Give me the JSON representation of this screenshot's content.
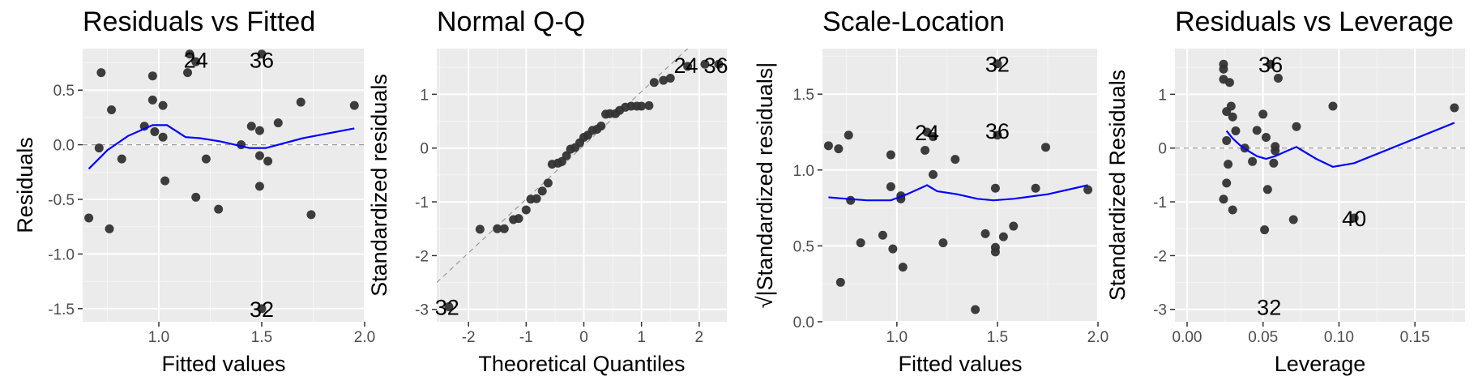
{
  "chart_data": [
    {
      "type": "scatter",
      "title": "Residuals vs Fitted",
      "xlabel": "Fitted values",
      "ylabel": "Residuals",
      "xlim": [
        0.63,
        2.0
      ],
      "ylim": [
        -1.62,
        0.88
      ],
      "x_ticks": [
        1.0,
        1.5,
        2.0
      ],
      "x_tick_labels": [
        "1.0",
        "1.5",
        "2.0"
      ],
      "y_ticks": [
        -1.5,
        -1.0,
        -0.5,
        0.0,
        0.5
      ],
      "y_tick_labels": [
        "-1.5",
        "-1.0",
        "-0.5",
        "0.0",
        "0.5"
      ],
      "grid": true,
      "reference_line": {
        "kind": "horizontal",
        "y": 0,
        "style": "dashed"
      },
      "points": [
        {
          "x": 0.66,
          "y": -0.67
        },
        {
          "x": 0.71,
          "y": -0.03
        },
        {
          "x": 0.72,
          "y": 0.66
        },
        {
          "x": 0.76,
          "y": -0.77
        },
        {
          "x": 0.77,
          "y": 0.32
        },
        {
          "x": 0.82,
          "y": -0.13
        },
        {
          "x": 0.93,
          "y": 0.17
        },
        {
          "x": 0.97,
          "y": 0.63
        },
        {
          "x": 0.97,
          "y": 0.41
        },
        {
          "x": 0.98,
          "y": 0.12
        },
        {
          "x": 1.02,
          "y": 0.07
        },
        {
          "x": 1.02,
          "y": 0.36
        },
        {
          "x": 1.03,
          "y": -0.33
        },
        {
          "x": 1.14,
          "y": 0.66
        },
        {
          "x": 1.15,
          "y": 0.83
        },
        {
          "x": 1.18,
          "y": 0.76
        },
        {
          "x": 1.18,
          "y": -0.48
        },
        {
          "x": 1.23,
          "y": -0.13
        },
        {
          "x": 1.29,
          "y": -0.59
        },
        {
          "x": 1.4,
          "y": 0.0
        },
        {
          "x": 1.45,
          "y": 0.17
        },
        {
          "x": 1.49,
          "y": 0.13
        },
        {
          "x": 1.49,
          "y": -0.1
        },
        {
          "x": 1.49,
          "y": -0.38
        },
        {
          "x": 1.5,
          "y": 0.83
        },
        {
          "x": 1.5,
          "y": -1.5
        },
        {
          "x": 1.53,
          "y": -0.15
        },
        {
          "x": 1.58,
          "y": 0.2
        },
        {
          "x": 1.69,
          "y": 0.39
        },
        {
          "x": 1.74,
          "y": -0.64
        },
        {
          "x": 1.95,
          "y": 0.36
        }
      ],
      "smooth_line": [
        {
          "x": 0.66,
          "y": -0.22
        },
        {
          "x": 0.75,
          "y": -0.05
        },
        {
          "x": 0.85,
          "y": 0.08
        },
        {
          "x": 0.97,
          "y": 0.18
        },
        {
          "x": 1.04,
          "y": 0.18
        },
        {
          "x": 1.13,
          "y": 0.07
        },
        {
          "x": 1.2,
          "y": 0.06
        },
        {
          "x": 1.3,
          "y": 0.03
        },
        {
          "x": 1.44,
          "y": -0.03
        },
        {
          "x": 1.52,
          "y": -0.03
        },
        {
          "x": 1.7,
          "y": 0.06
        },
        {
          "x": 1.95,
          "y": 0.15
        }
      ],
      "annotations": [
        {
          "text": "24",
          "x": 1.18,
          "y": 0.78
        },
        {
          "text": "36",
          "x": 1.5,
          "y": 0.78
        },
        {
          "text": "32",
          "x": 1.5,
          "y": -1.5
        }
      ]
    },
    {
      "type": "scatter",
      "title": "Normal Q-Q",
      "xlabel": "Theoretical Quantiles",
      "ylabel": "Standardized residuals",
      "xlim": [
        -2.55,
        2.48
      ],
      "ylim": [
        -3.23,
        1.85
      ],
      "x_ticks": [
        -2,
        -1,
        0,
        1,
        2
      ],
      "x_tick_labels": [
        "-2",
        "-1",
        "0",
        "1",
        "2"
      ],
      "y_ticks": [
        -3,
        -2,
        -1,
        0,
        1
      ],
      "y_tick_labels": [
        "-3",
        "-2",
        "-1",
        "0",
        "1"
      ],
      "grid": true,
      "reference_line": {
        "kind": "diagonal",
        "slope": 1.0,
        "intercept": 0.05,
        "style": "dashed"
      },
      "points": [
        {
          "x": -2.34,
          "y": -2.95
        },
        {
          "x": -1.8,
          "y": -1.51
        },
        {
          "x": -1.5,
          "y": -1.5
        },
        {
          "x": -1.38,
          "y": -1.5
        },
        {
          "x": -1.22,
          "y": -1.33
        },
        {
          "x": -1.13,
          "y": -1.31
        },
        {
          "x": -1.0,
          "y": -1.15
        },
        {
          "x": -0.92,
          "y": -0.95
        },
        {
          "x": -0.82,
          "y": -0.94
        },
        {
          "x": -0.72,
          "y": -0.8
        },
        {
          "x": -0.62,
          "y": -0.65
        },
        {
          "x": -0.55,
          "y": -0.3
        },
        {
          "x": -0.45,
          "y": -0.28
        },
        {
          "x": -0.38,
          "y": -0.25
        },
        {
          "x": -0.3,
          "y": -0.14
        },
        {
          "x": -0.23,
          "y": -0.02
        },
        {
          "x": -0.15,
          "y": 0.01
        },
        {
          "x": -0.07,
          "y": 0.1
        },
        {
          "x": 0.0,
          "y": 0.2
        },
        {
          "x": 0.07,
          "y": 0.24
        },
        {
          "x": 0.15,
          "y": 0.33
        },
        {
          "x": 0.23,
          "y": 0.35
        },
        {
          "x": 0.3,
          "y": 0.41
        },
        {
          "x": 0.38,
          "y": 0.63
        },
        {
          "x": 0.45,
          "y": 0.64
        },
        {
          "x": 0.55,
          "y": 0.64
        },
        {
          "x": 0.62,
          "y": 0.7
        },
        {
          "x": 0.72,
          "y": 0.76
        },
        {
          "x": 0.82,
          "y": 0.78
        },
        {
          "x": 0.92,
          "y": 0.78
        },
        {
          "x": 1.0,
          "y": 0.78
        },
        {
          "x": 1.13,
          "y": 0.79
        },
        {
          "x": 1.22,
          "y": 1.22
        },
        {
          "x": 1.38,
          "y": 1.26
        },
        {
          "x": 1.5,
          "y": 1.3
        },
        {
          "x": 1.8,
          "y": 1.52
        },
        {
          "x": 2.1,
          "y": 1.56
        },
        {
          "x": 2.34,
          "y": 1.56
        }
      ],
      "annotations": [
        {
          "text": "24",
          "x": 1.77,
          "y": 1.55
        },
        {
          "text": "36",
          "x": 2.29,
          "y": 1.55
        },
        {
          "text": "32",
          "x": -2.37,
          "y": -2.95
        }
      ]
    },
    {
      "type": "scatter",
      "title": "Scale-Location",
      "xlabel": "Fitted values",
      "ylabel": "√|Standardized residuals|",
      "xlim": [
        0.63,
        2.0
      ],
      "ylim": [
        0.0,
        1.8
      ],
      "x_ticks": [
        1.0,
        1.5,
        2.0
      ],
      "x_tick_labels": [
        "1.0",
        "1.5",
        "2.0"
      ],
      "y_ticks": [
        0.0,
        0.5,
        1.0,
        1.5
      ],
      "y_tick_labels": [
        "0.0",
        "0.5",
        "1.0",
        "1.5"
      ],
      "grid": true,
      "points": [
        {
          "x": 0.66,
          "y": 1.16
        },
        {
          "x": 0.71,
          "y": 1.14
        },
        {
          "x": 0.72,
          "y": 0.26
        },
        {
          "x": 0.76,
          "y": 1.23
        },
        {
          "x": 0.77,
          "y": 0.8
        },
        {
          "x": 0.82,
          "y": 0.52
        },
        {
          "x": 0.93,
          "y": 0.57
        },
        {
          "x": 0.97,
          "y": 1.1
        },
        {
          "x": 0.97,
          "y": 0.89
        },
        {
          "x": 0.98,
          "y": 0.48
        },
        {
          "x": 1.02,
          "y": 0.81
        },
        {
          "x": 1.02,
          "y": 0.83
        },
        {
          "x": 1.03,
          "y": 0.36
        },
        {
          "x": 1.14,
          "y": 1.13
        },
        {
          "x": 1.15,
          "y": 1.25
        },
        {
          "x": 1.18,
          "y": 0.97
        },
        {
          "x": 1.18,
          "y": 1.22
        },
        {
          "x": 1.23,
          "y": 0.52
        },
        {
          "x": 1.29,
          "y": 1.07
        },
        {
          "x": 1.39,
          "y": 0.08
        },
        {
          "x": 1.44,
          "y": 0.58
        },
        {
          "x": 1.49,
          "y": 0.88
        },
        {
          "x": 1.49,
          "y": 0.49
        },
        {
          "x": 1.49,
          "y": 0.46
        },
        {
          "x": 1.5,
          "y": 1.23
        },
        {
          "x": 1.5,
          "y": 1.7
        },
        {
          "x": 1.53,
          "y": 0.56
        },
        {
          "x": 1.58,
          "y": 0.63
        },
        {
          "x": 1.69,
          "y": 0.88
        },
        {
          "x": 1.74,
          "y": 1.15
        },
        {
          "x": 1.95,
          "y": 0.87
        }
      ],
      "smooth_line": [
        {
          "x": 0.66,
          "y": 0.82
        },
        {
          "x": 0.75,
          "y": 0.81
        },
        {
          "x": 0.85,
          "y": 0.8
        },
        {
          "x": 0.97,
          "y": 0.8
        },
        {
          "x": 1.05,
          "y": 0.84
        },
        {
          "x": 1.15,
          "y": 0.9
        },
        {
          "x": 1.2,
          "y": 0.86
        },
        {
          "x": 1.3,
          "y": 0.84
        },
        {
          "x": 1.4,
          "y": 0.81
        },
        {
          "x": 1.48,
          "y": 0.8
        },
        {
          "x": 1.58,
          "y": 0.81
        },
        {
          "x": 1.75,
          "y": 0.84
        },
        {
          "x": 1.95,
          "y": 0.9
        }
      ],
      "annotations": [
        {
          "text": "32",
          "x": 1.5,
          "y": 1.7
        },
        {
          "text": "24",
          "x": 1.15,
          "y": 1.25
        },
        {
          "text": "36",
          "x": 1.5,
          "y": 1.26
        }
      ]
    },
    {
      "type": "scatter",
      "title": "Residuals vs Leverage",
      "xlabel": "Leverage",
      "ylabel": "Standardized Residuals",
      "xlim": [
        -0.008,
        0.183
      ],
      "ylim": [
        -3.23,
        1.85
      ],
      "x_ticks": [
        0.0,
        0.05,
        0.1,
        0.15
      ],
      "x_tick_labels": [
        "0.00",
        "0.05",
        "0.10",
        "0.15"
      ],
      "y_ticks": [
        -3,
        -2,
        -1,
        0,
        1
      ],
      "y_tick_labels": [
        "-3",
        "-2",
        "-1",
        "0",
        "1"
      ],
      "grid": true,
      "reference_line": {
        "kind": "horizontal",
        "y": 0,
        "style": "dashed"
      },
      "points": [
        {
          "x": 0.024,
          "y": 1.56
        },
        {
          "x": 0.024,
          "y": 1.47
        },
        {
          "x": 0.024,
          "y": 1.28
        },
        {
          "x": 0.024,
          "y": -0.95
        },
        {
          "x": 0.026,
          "y": 0.68
        },
        {
          "x": 0.026,
          "y": 0.14
        },
        {
          "x": 0.026,
          "y": -0.65
        },
        {
          "x": 0.027,
          "y": -0.3
        },
        {
          "x": 0.028,
          "y": 1.22
        },
        {
          "x": 0.029,
          "y": 0.78
        },
        {
          "x": 0.03,
          "y": 0.58
        },
        {
          "x": 0.03,
          "y": -1.15
        },
        {
          "x": 0.032,
          "y": 0.32
        },
        {
          "x": 0.038,
          "y": 0.0
        },
        {
          "x": 0.043,
          "y": -0.25
        },
        {
          "x": 0.046,
          "y": 0.33
        },
        {
          "x": 0.05,
          "y": 0.63
        },
        {
          "x": 0.051,
          "y": -1.52
        },
        {
          "x": 0.052,
          "y": 0.2
        },
        {
          "x": 0.053,
          "y": -0.77
        },
        {
          "x": 0.055,
          "y": 1.56
        },
        {
          "x": 0.057,
          "y": -0.28
        },
        {
          "x": 0.058,
          "y": 0.03
        },
        {
          "x": 0.058,
          "y": -0.05
        },
        {
          "x": 0.06,
          "y": 1.3
        },
        {
          "x": 0.072,
          "y": 0.4
        },
        {
          "x": 0.07,
          "y": -1.33
        },
        {
          "x": 0.096,
          "y": 0.78
        },
        {
          "x": 0.11,
          "y": -1.3
        },
        {
          "x": 0.176,
          "y": 0.75
        }
      ],
      "smooth_line": [
        {
          "x": 0.026,
          "y": 0.32
        },
        {
          "x": 0.03,
          "y": 0.18
        },
        {
          "x": 0.035,
          "y": 0.05
        },
        {
          "x": 0.04,
          "y": -0.05
        },
        {
          "x": 0.046,
          "y": -0.15
        },
        {
          "x": 0.052,
          "y": -0.2
        },
        {
          "x": 0.058,
          "y": -0.15
        },
        {
          "x": 0.066,
          "y": -0.05
        },
        {
          "x": 0.072,
          "y": 0.02
        },
        {
          "x": 0.085,
          "y": -0.2
        },
        {
          "x": 0.096,
          "y": -0.35
        },
        {
          "x": 0.11,
          "y": -0.28
        },
        {
          "x": 0.176,
          "y": 0.47
        }
      ],
      "annotations": [
        {
          "text": "36",
          "x": 0.055,
          "y": 1.56
        },
        {
          "text": "40",
          "x": 0.11,
          "y": -1.3
        },
        {
          "text": "32",
          "x": 0.054,
          "y": -2.95
        }
      ]
    }
  ]
}
